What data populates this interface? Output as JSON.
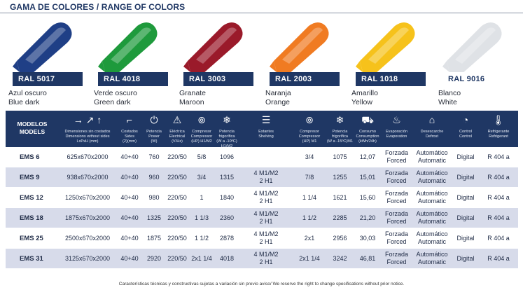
{
  "title": "GAMA DE COLORES / RANGE OF COLORS",
  "swatches": [
    {
      "ral": "RAL 5017",
      "name_es": "Azul oscuro",
      "name_en": "Blue dark",
      "color": "#1f3f86",
      "tag_style": "dark"
    },
    {
      "ral": "RAL 4018",
      "name_es": "Verde oscuro",
      "name_en": "Green dark",
      "color": "#1e9a3c",
      "tag_style": "dark"
    },
    {
      "ral": "RAL 3003",
      "name_es": "Granate",
      "name_en": "Maroon",
      "color": "#9a1a2a",
      "tag_style": "dark"
    },
    {
      "ral": "RAL 2003",
      "name_es": "Naranja",
      "name_en": "Orange",
      "color": "#f07b22",
      "tag_style": "dark"
    },
    {
      "ral": "RAL 1018",
      "name_es": "Amarillo",
      "name_en": "Yellow",
      "color": "#f6c21b",
      "tag_style": "dark"
    },
    {
      "ral": "RAL 9016",
      "name_es": "Blanco",
      "name_en": "White",
      "color": "#dfe2e6",
      "tag_style": "light"
    }
  ],
  "table": {
    "model_header": {
      "es": "MODELOS",
      "en": "MODELS"
    },
    "headers": [
      {
        "icon": "arrows-dimensions-icon",
        "glyph": "→ ↗ ↑",
        "label": "Dimensiones sin costados\nDimensions without sides\nLxPxH (mm)"
      },
      {
        "icon": "sides-icon",
        "glyph": "⌐",
        "label": "Costados\nSides\n(2)(mm)"
      },
      {
        "icon": "power-icon",
        "glyph": "⏻",
        "label": "Potencia\nPower\n(W)"
      },
      {
        "icon": "electric-warning-icon",
        "glyph": "⚠",
        "label": "Eléctrica\nElectrical\n(V/Hz)"
      },
      {
        "icon": "compressor-icon",
        "glyph": "⊚",
        "label": "Compresor\nCompressor\n(HP) H1/M2"
      },
      {
        "icon": "snowflake-icon",
        "glyph": "❄",
        "label": "Potencia\nfrigorífica\n(W a -10ºC) H1/M2"
      },
      {
        "icon": "shelving-icon",
        "glyph": "☰",
        "label": "Estantes\nShelving"
      },
      {
        "icon": "compressor-icon-2",
        "glyph": "⊚",
        "label": "Compresor\nCompressor\n(HP) M1"
      },
      {
        "icon": "snowflake-icon-2",
        "glyph": "❄",
        "label": "Potencia\nfrigorífica\n(W a -15ºC)M1"
      },
      {
        "icon": "consumption-cart-icon",
        "glyph": "⛟",
        "label": "Consumo\nConsumption\n(kWh/24h)"
      },
      {
        "icon": "evaporation-icon",
        "glyph": "♨",
        "label": "Evaporación\nEvaporation"
      },
      {
        "icon": "defrost-icon",
        "glyph": "⌂",
        "label": "Desescarche\nDefrost"
      },
      {
        "icon": "control-gauge-icon",
        "glyph": "◔",
        "label": "Control\nControl"
      },
      {
        "icon": "refrigerant-thermometer-icon",
        "glyph": "🌡",
        "label": "Refrigerante\nRefrigerant"
      }
    ],
    "rows": [
      {
        "model": "EMS 6",
        "dims": "625x670x2000",
        "sides": "40+40",
        "power": "760",
        "elec": "220/50",
        "comp": "5/8",
        "frig": "1096",
        "shelf_a": "",
        "shelf_b": "",
        "comp_m1": "3/4",
        "frig_m1": "1075",
        "cons": "12,07",
        "evap_a": "Forzada",
        "evap_b": "Forced",
        "def_a": "Automático",
        "def_b": "Automatic",
        "control": "Digital",
        "refr": "R 404 a"
      },
      {
        "model": "EMS 9",
        "dims": "938x670x2000",
        "sides": "40+40",
        "power": "960",
        "elec": "220/50",
        "comp": "3/4",
        "frig": "1315",
        "shelf_a": "4 M1/M2",
        "shelf_b": "2 H1",
        "comp_m1": "7/8",
        "frig_m1": "1255",
        "cons": "15,01",
        "evap_a": "Forzada",
        "evap_b": "Forced",
        "def_a": "Automático",
        "def_b": "Automatic",
        "control": "Digital",
        "refr": "R 404 a"
      },
      {
        "model": "EMS 12",
        "dims": "1250x670x2000",
        "sides": "40+40",
        "power": "980",
        "elec": "220/50",
        "comp": "1",
        "frig": "1840",
        "shelf_a": "4 M1/M2",
        "shelf_b": "2 H1",
        "comp_m1": "1 1/4",
        "frig_m1": "1621",
        "cons": "15,60",
        "evap_a": "Forzada",
        "evap_b": "Forced",
        "def_a": "Automático",
        "def_b": "Automatic",
        "control": "Digital",
        "refr": "R 404 a"
      },
      {
        "model": "EMS 18",
        "dims": "1875x670x2000",
        "sides": "40+40",
        "power": "1325",
        "elec": "220/50",
        "comp": "1 1/3",
        "frig": "2360",
        "shelf_a": "4 M1/M2",
        "shelf_b": "2 H1",
        "comp_m1": "1 1/2",
        "frig_m1": "2285",
        "cons": "21,20",
        "evap_a": "Forzada",
        "evap_b": "Forced",
        "def_a": "Automático",
        "def_b": "Automatic",
        "control": "Digital",
        "refr": "R 404 a"
      },
      {
        "model": "EMS 25",
        "dims": "2500x670x2000",
        "sides": "40+40",
        "power": "1875",
        "elec": "220/50",
        "comp": "1 1/2",
        "frig": "2878",
        "shelf_a": "4 M1/M2",
        "shelf_b": "2 H1",
        "comp_m1": "2x1",
        "frig_m1": "2956",
        "cons": "30,03",
        "evap_a": "Forzada",
        "evap_b": "Forced",
        "def_a": "Automático",
        "def_b": "Automatic",
        "control": "Digital",
        "refr": "R 404 a"
      },
      {
        "model": "EMS 31",
        "dims": "3125x670x2000",
        "sides": "40+40",
        "power": "2920",
        "elec": "220/50",
        "comp": "2x1 1/4",
        "frig": "4018",
        "shelf_a": "4 M1/M2",
        "shelf_b": "2 H1",
        "comp_m1": "2x1 1/4",
        "frig_m1": "3242",
        "cons": "46,81",
        "evap_a": "Forzada",
        "evap_b": "Forced",
        "def_a": "Automático",
        "def_b": "Automatic",
        "control": "Digital",
        "refr": "R 404 a"
      }
    ]
  },
  "footnote": "Características técnicas y constructivas sujetas a variación sin previo aviso/ We reserve the right to change specifications without prior notice."
}
